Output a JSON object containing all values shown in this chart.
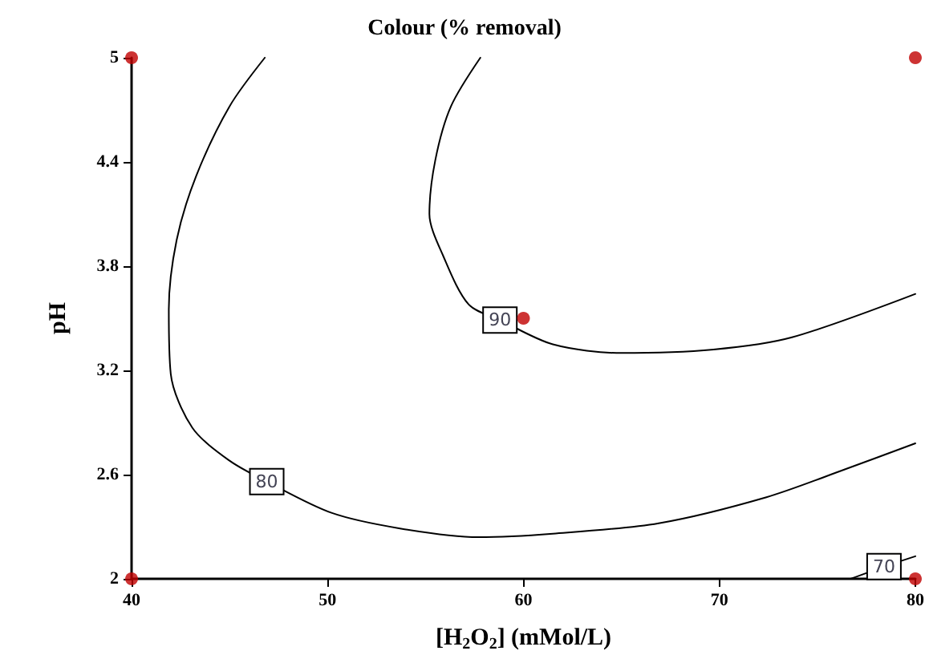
{
  "chart_data": {
    "type": "line",
    "title": "Colour (% removal)",
    "xlabel": "[H$_{2}$O$_{2}$] (mMol/L)",
    "ylabel": "pH",
    "xlim": [
      40,
      80
    ],
    "xticks": [
      40,
      50,
      60,
      70,
      80
    ],
    "ylim": [
      2,
      5
    ],
    "yticks": [
      2,
      2.6,
      3.2,
      3.8,
      4.4,
      5
    ],
    "grid": false,
    "legend": false,
    "marker": "none",
    "line_style": "solid",
    "series": [
      {
        "name": "70",
        "color": "#000000",
        "x": [
          76.7,
          78.4,
          80
        ],
        "values": [
          2,
          2.07,
          2.13
        ]
      },
      {
        "name": "80",
        "color": "#000000",
        "x": [
          46.8,
          45.0,
          43.3,
          42.3,
          41.9,
          42.0,
          43.1,
          45.0,
          46.9,
          50.2,
          53.7,
          57.7,
          61.5,
          66.9,
          72.4,
          76.4,
          80
        ],
        "values": [
          5,
          4.72,
          4.32,
          3.95,
          3.55,
          3.18,
          2.87,
          2.68,
          2.56,
          2.38,
          2.29,
          2.24,
          2.26,
          2.32,
          2.47,
          2.63,
          2.78
        ]
      },
      {
        "name": "90",
        "color": "#000000",
        "x": [
          57.8,
          56.3,
          55.5,
          55.2,
          55.9,
          57.2,
          58.8,
          61.5,
          65.0,
          69.7,
          73.7,
          80
        ],
        "values": [
          5,
          4.72,
          4.41,
          4.1,
          3.86,
          3.58,
          3.49,
          3.35,
          3.3,
          3.32,
          3.39,
          3.64
        ]
      },
      {
        "type": "scatter",
        "marker": "circle",
        "color": "#c00000",
        "x": [
          40,
          40,
          80,
          80,
          60
        ],
        "values": [
          5,
          2,
          5,
          2,
          3.5
        ]
      }
    ]
  }
}
